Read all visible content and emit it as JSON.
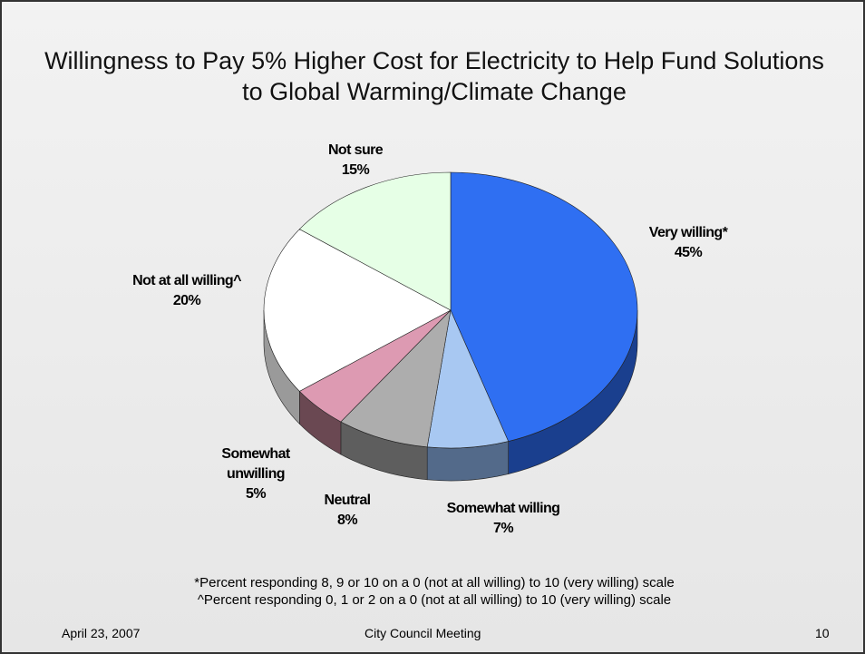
{
  "title": "Willingness to Pay 5% Higher Cost for Electricity to Help Fund Solutions to Global Warming/Climate Change",
  "chart_data": {
    "type": "pie",
    "categories": [
      "Very willing*",
      "Somewhat willing",
      "Neutral",
      "Somewhat unwilling",
      "Not at all willing^",
      "Not sure"
    ],
    "values": [
      45,
      7,
      8,
      5,
      20,
      15
    ],
    "value_labels": [
      "45%",
      "7%",
      "8%",
      "5%",
      "20%",
      "15%"
    ],
    "colors": [
      "#2f6ff2",
      "#a8c8f2",
      "#adadad",
      "#dd9ab2",
      "#ffffff",
      "#e6ffe6"
    ],
    "side_colors": [
      "#1a3f8e",
      "#536a8a",
      "#5e5e5e",
      "#6a4852",
      "#9a9a9a",
      "#8a9a8a"
    ]
  },
  "footnotes": [
    "*Percent responding 8, 9 or 10 on a 0 (not at all willing) to 10 (very willing) scale",
    "^Percent responding 0, 1 or 2 on a 0 (not at all willing) to 10 (very willing) scale"
  ],
  "footer": {
    "date": "April 23, 2007",
    "center": "City Council Meeting",
    "page": "10"
  }
}
